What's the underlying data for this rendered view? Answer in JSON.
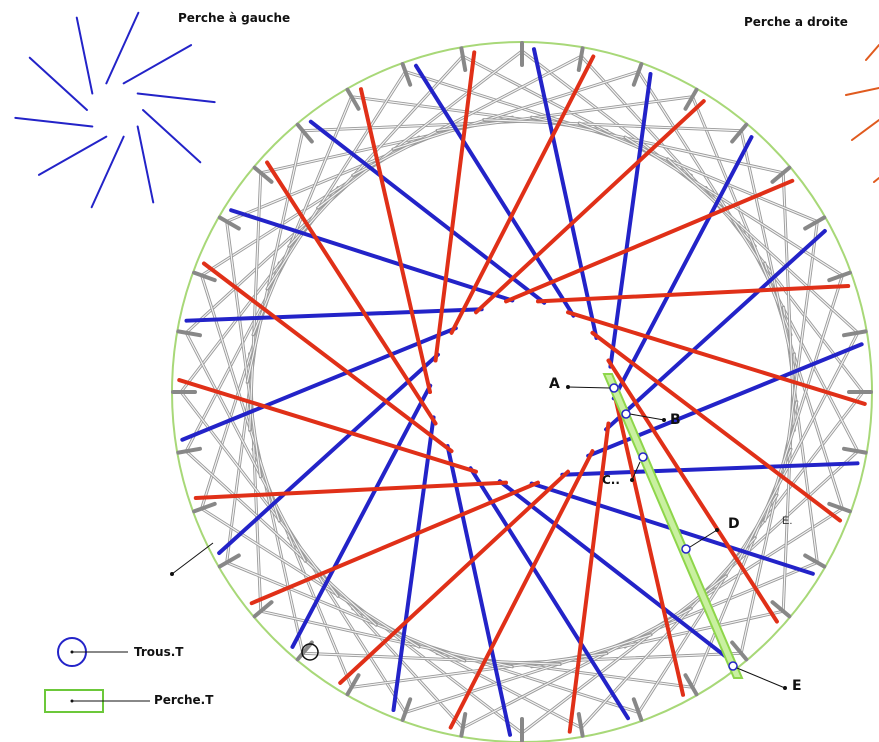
{
  "title_left": "Perche à gauche",
  "title_right": "Perche a droite",
  "points": {
    "a": "A",
    "b": "B",
    "c": "C..",
    "d": "D",
    "e": "E",
    "e_small": "E."
  },
  "legend": {
    "hole": "Trous.T",
    "pole": "Perche.T"
  },
  "colors": {
    "left_poles": "#2323c8",
    "right_poles": "#e03018",
    "outer_circle": "#a8d878",
    "highlight_pole": "#8ed64a",
    "grey_structure": "#9a9a9a"
  },
  "structure": {
    "pole_pairs": 18,
    "grey_pole_count": 36
  }
}
